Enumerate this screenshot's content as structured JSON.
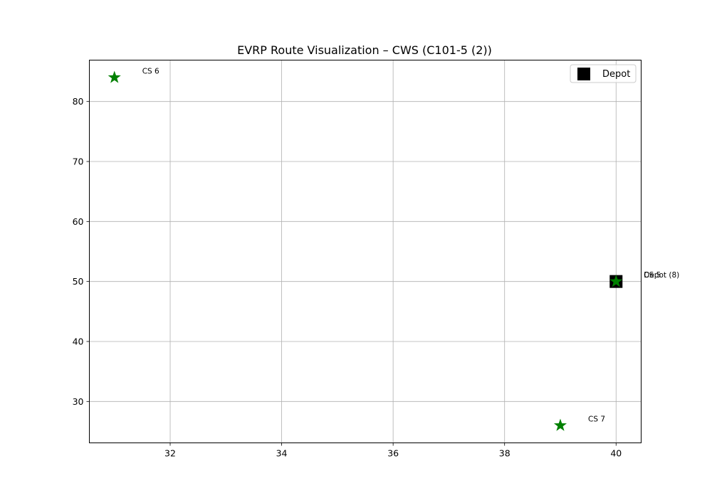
{
  "chart_data": {
    "type": "scatter",
    "title": "EVRP Route Visualization – CWS (C101-5 (2))",
    "xlabel": "",
    "ylabel": "",
    "xlim": [
      30.55,
      40.45
    ],
    "ylim": [
      23.1,
      86.9
    ],
    "xticks": [
      32,
      34,
      36,
      38,
      40
    ],
    "yticks": [
      30,
      40,
      50,
      60,
      70,
      80
    ],
    "grid": true,
    "legend": {
      "position": "top-right",
      "entries": [
        "Depot"
      ]
    },
    "series": [
      {
        "name": "Depot",
        "marker": "square",
        "color": "#000000",
        "points": [
          {
            "x": 40,
            "y": 50,
            "label": "Depot (8)"
          }
        ]
      },
      {
        "marker": "star",
        "color": "#008000",
        "points": [
          {
            "x": 31,
            "y": 84,
            "label": "CS 6"
          },
          {
            "x": 39,
            "y": 26,
            "label": "CS 7"
          },
          {
            "x": 40,
            "y": 50,
            "label": "CS 5"
          }
        ]
      }
    ]
  }
}
